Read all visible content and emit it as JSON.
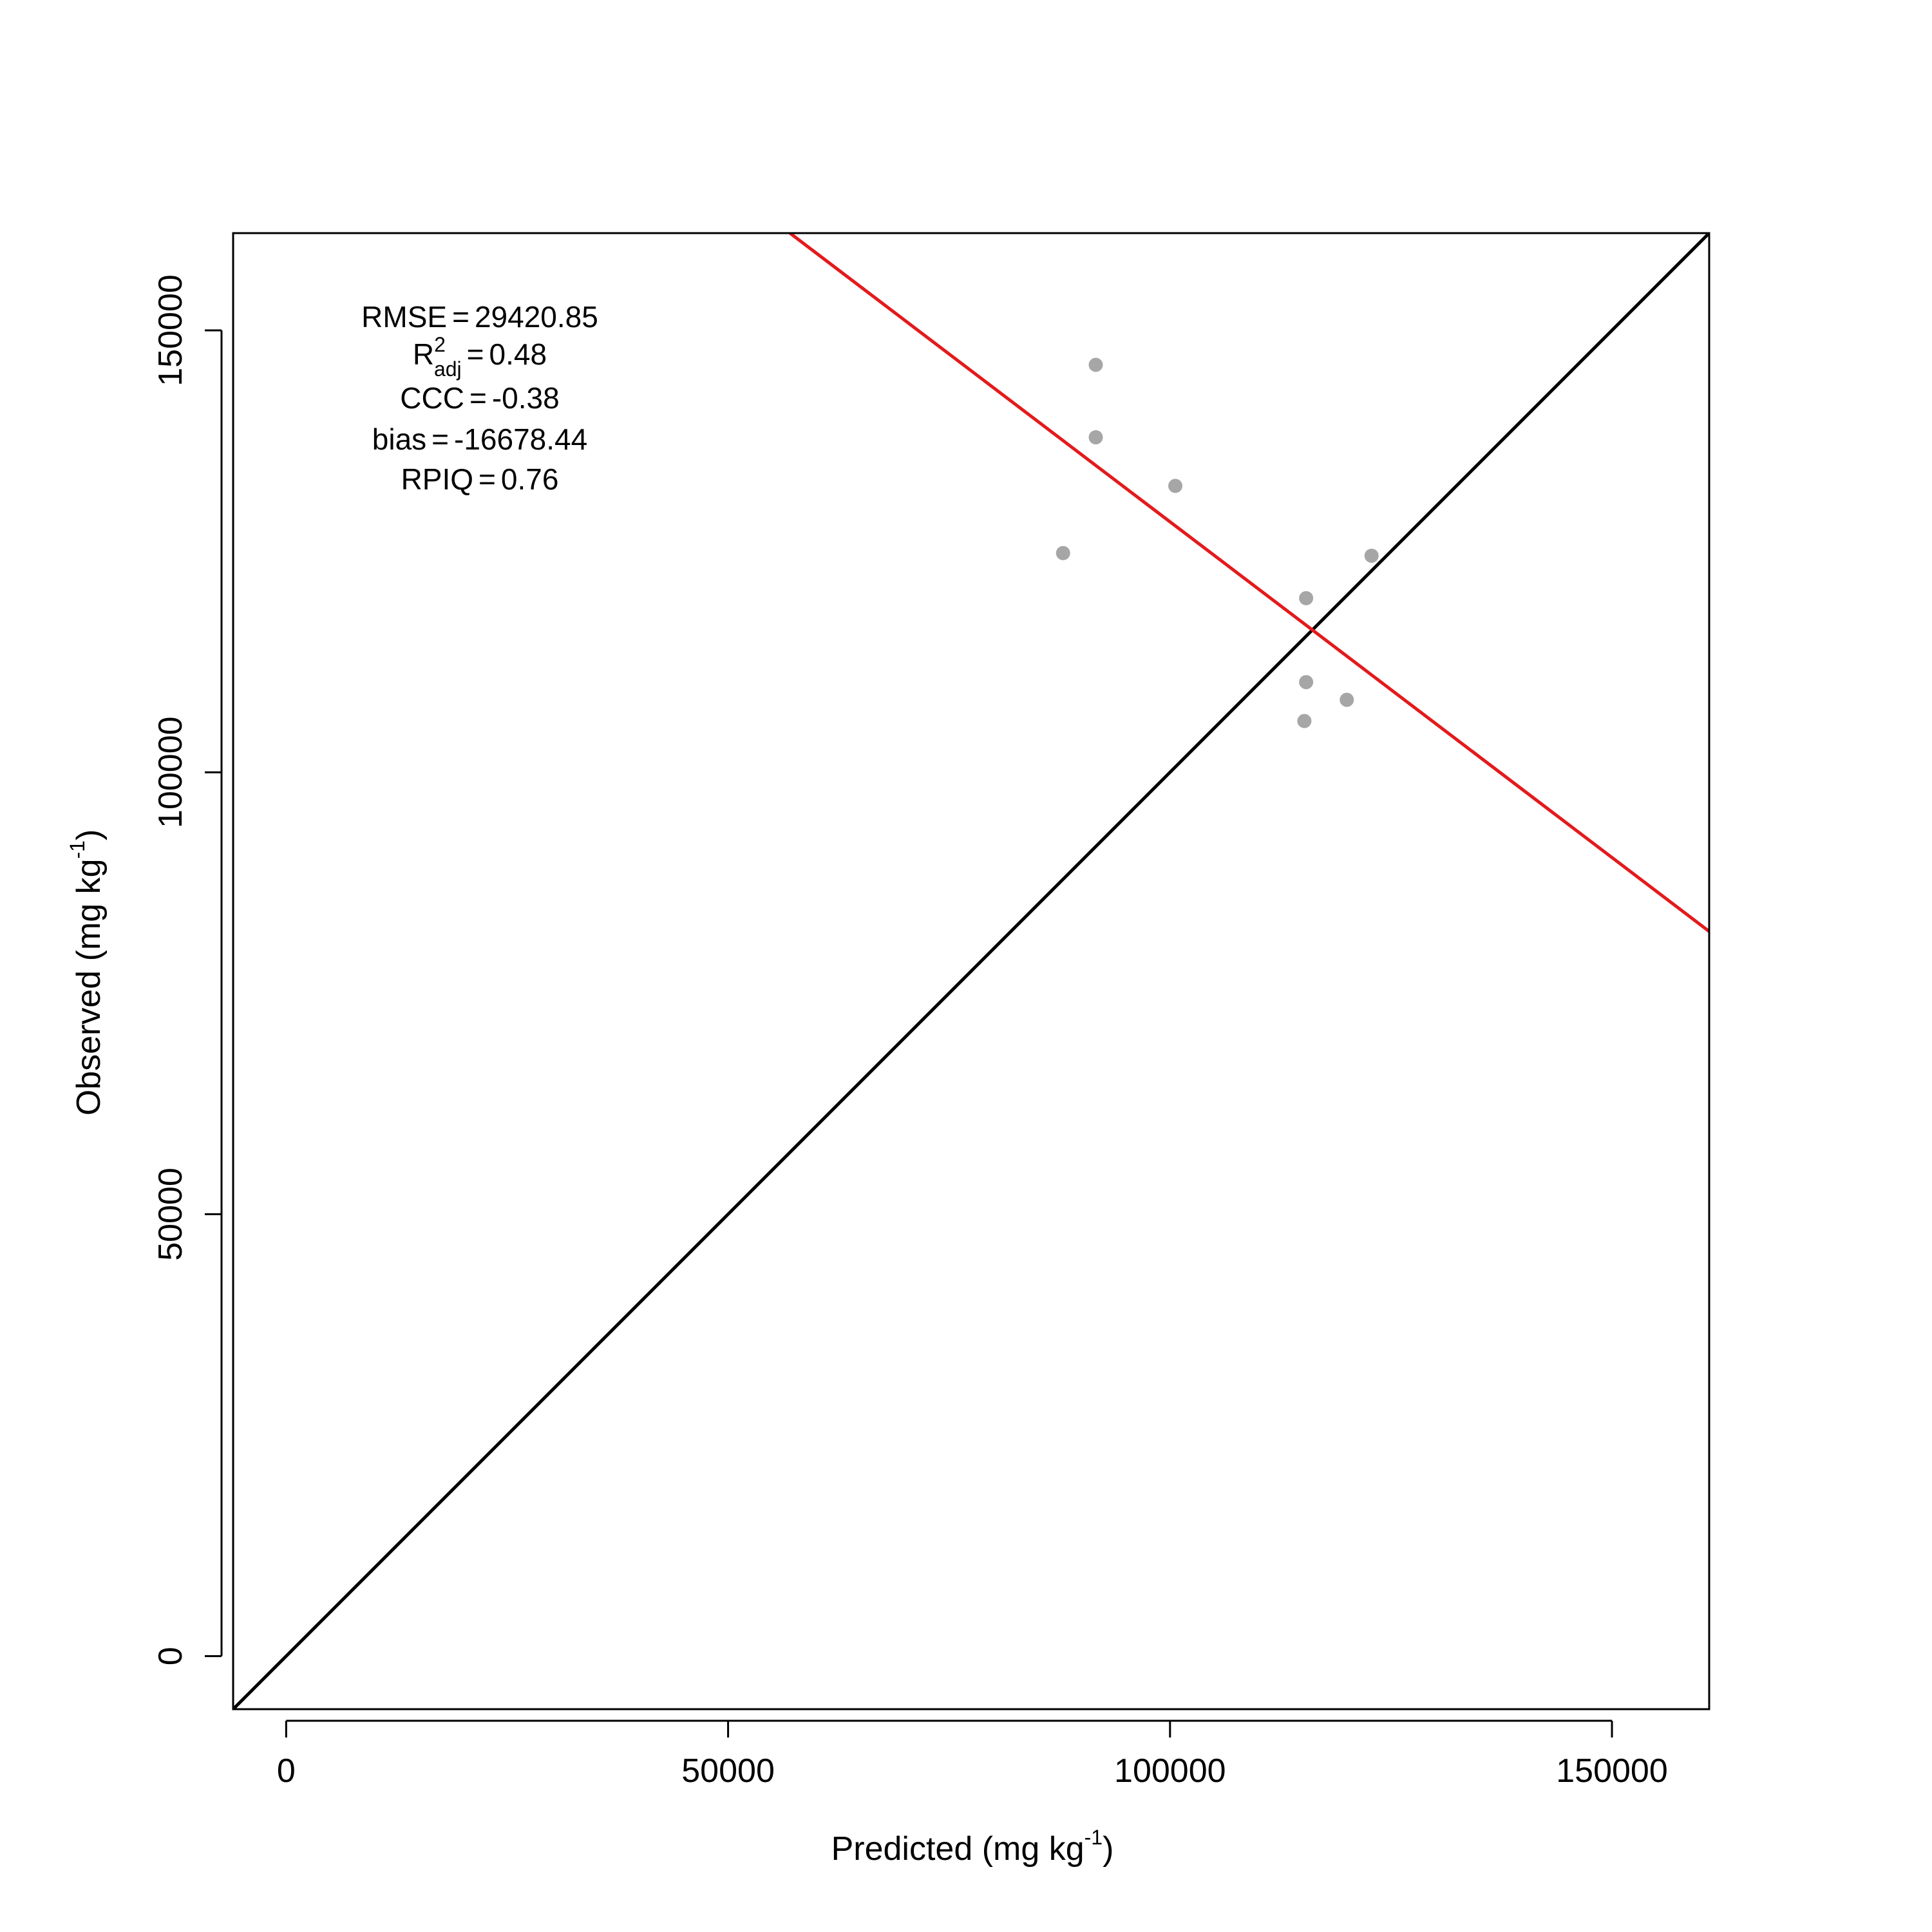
{
  "chart_data": {
    "type": "scatter",
    "xlabel": {
      "main": "Predicted (mg kg",
      "sup": "-1",
      "end": ")"
    },
    "ylabel": {
      "main": "Observed (mg kg",
      "sup": "-1",
      "end": ")"
    },
    "xlim": [
      -6000,
      161000
    ],
    "ylim": [
      -6000,
      161000
    ],
    "xticks": [
      0,
      50000,
      100000,
      150000
    ],
    "yticks": [
      0,
      50000,
      100000,
      150000
    ],
    "xtick_labels": [
      "0",
      "50000",
      "100000",
      "150000"
    ],
    "ytick_labels": [
      "0",
      "50000",
      "100000",
      "150000"
    ],
    "point_color": "#a6a6a6",
    "points": [
      {
        "x": 87900,
        "y": 124800
      },
      {
        "x": 91600,
        "y": 146100
      },
      {
        "x": 91600,
        "y": 137900
      },
      {
        "x": 100600,
        "y": 132400
      },
      {
        "x": 115400,
        "y": 119700
      },
      {
        "x": 115400,
        "y": 110200
      },
      {
        "x": 115200,
        "y": 105800
      },
      {
        "x": 120000,
        "y": 108200
      },
      {
        "x": 122800,
        "y": 124500
      }
    ],
    "identity_line": {
      "color": "#000000",
      "from": [
        -6000,
        -6000
      ],
      "to": [
        161000,
        161000
      ]
    },
    "fit_line": {
      "color": "#e31a1c",
      "from": [
        57000,
        161000
      ],
      "to": [
        161000,
        82000
      ]
    },
    "stats": {
      "rmse": {
        "label": "RMSE",
        "value": "29420.85"
      },
      "r2": {
        "label": "R",
        "sup": "2",
        "sub": "adj",
        "value": "0.48"
      },
      "ccc": {
        "label": "CCC",
        "value": "-0.38"
      },
      "bias": {
        "label": "bias",
        "value": "-16678.44"
      },
      "rpiq": {
        "label": "RPIQ",
        "value": "0.76"
      },
      "eq": "="
    }
  }
}
